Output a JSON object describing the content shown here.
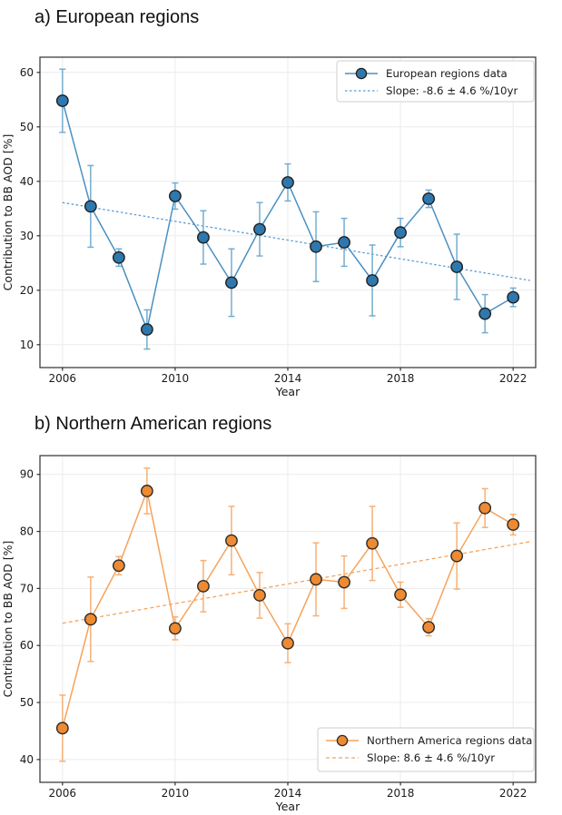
{
  "chart_data": [
    {
      "type": "line",
      "panel": "a",
      "title": "a) European regions",
      "xlabel": "Year",
      "ylabel": "Contribution to BB AOD [%]",
      "x": [
        2006,
        2007,
        2008,
        2009,
        2010,
        2011,
        2012,
        2013,
        2014,
        2015,
        2016,
        2017,
        2018,
        2019,
        2020,
        2021,
        2022
      ],
      "series": [
        {
          "name": "European regions data",
          "values": [
            54.8,
            35.4,
            26.0,
            12.8,
            37.3,
            29.7,
            21.4,
            31.2,
            39.8,
            28.0,
            28.8,
            21.8,
            30.6,
            36.8,
            24.3,
            15.7,
            18.7
          ],
          "errors": [
            5.8,
            7.5,
            1.6,
            3.6,
            2.4,
            4.9,
            6.2,
            4.9,
            3.4,
            6.4,
            4.4,
            6.5,
            2.6,
            1.6,
            6.0,
            3.5,
            1.7
          ]
        }
      ],
      "trend": {
        "label": "Slope: -8.6 ± 4.6 %/10yr",
        "x": [
          2006,
          2022.6
        ],
        "y": [
          36.1,
          21.8
        ]
      },
      "legend": {
        "entries": [
          "European regions data",
          "Slope: -8.6 ± 4.6 %/10yr"
        ],
        "position": "top-right"
      },
      "xticks": [
        2006,
        2010,
        2014,
        2018,
        2022
      ],
      "yticks": [
        10,
        20,
        30,
        40,
        50,
        60
      ],
      "xlim": [
        2005.2,
        2022.8
      ],
      "ylim": [
        5.8,
        62.8
      ],
      "grid": true,
      "colors": {
        "marker": "#2e78ae",
        "marker_edge": "#1f1f1f",
        "line": "#4a90c2",
        "error": "#74add1",
        "trend": "#5b9bd5"
      }
    },
    {
      "type": "line",
      "panel": "b",
      "title": "b) Northern American regions",
      "xlabel": "Year",
      "ylabel": "Contribution to BB AOD [%]",
      "x": [
        2006,
        2007,
        2008,
        2009,
        2010,
        2011,
        2012,
        2013,
        2014,
        2015,
        2016,
        2017,
        2018,
        2019,
        2020,
        2021,
        2022
      ],
      "series": [
        {
          "name": "Northern America regions data",
          "values": [
            45.5,
            64.6,
            74.0,
            87.1,
            63.0,
            70.4,
            78.4,
            68.8,
            60.4,
            71.6,
            71.1,
            77.9,
            68.9,
            63.2,
            75.7,
            84.1,
            81.2
          ],
          "errors": [
            5.8,
            7.4,
            1.6,
            4.0,
            2.0,
            4.5,
            6.0,
            4.0,
            3.4,
            6.4,
            4.6,
            6.5,
            2.2,
            1.5,
            5.8,
            3.4,
            1.8
          ]
        }
      ],
      "trend": {
        "label": "Slope: 8.6 ± 4.6 %/10yr",
        "x": [
          2006,
          2022.6
        ],
        "y": [
          63.9,
          78.2
        ]
      },
      "legend": {
        "entries": [
          "Northern America regions data",
          "Slope: 8.6 ± 4.6 %/10yr"
        ],
        "position": "bottom-right"
      },
      "xticks": [
        2006,
        2010,
        2014,
        2018,
        2022
      ],
      "yticks": [
        40,
        50,
        60,
        70,
        80,
        90
      ],
      "xlim": [
        2005.2,
        2022.8
      ],
      "ylim": [
        36.0,
        93.3
      ],
      "grid": true,
      "colors": {
        "marker": "#ee8a31",
        "marker_edge": "#2b2b2b",
        "line": "#f5a35c",
        "error": "#f7b076",
        "trend": "#f5a55f"
      }
    }
  ],
  "style": {
    "grid_color": "#ebebeb",
    "spine_color": "#2f2f2f",
    "legend_border": "#cfcfcf",
    "text_color": "#1a1a1a"
  }
}
